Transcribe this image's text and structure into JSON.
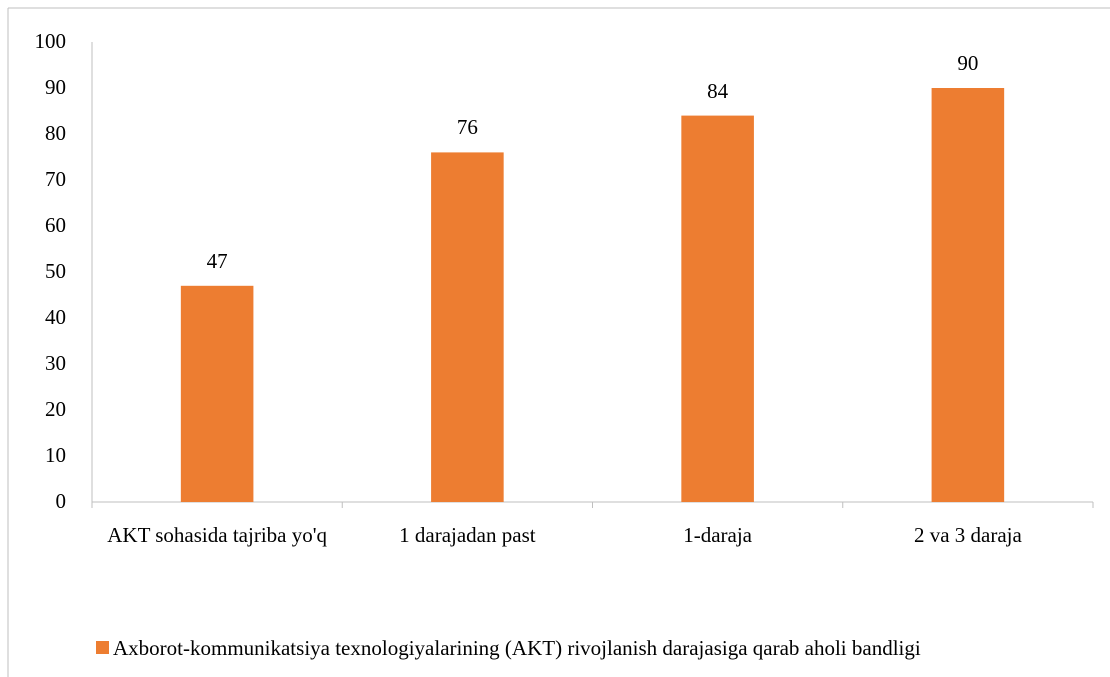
{
  "chart_data": {
    "type": "bar",
    "categories": [
      "AKT sohasida tajriba yo'q",
      "1 darajadan past",
      "1-daraja",
      "2 va 3 daraja"
    ],
    "series": [
      {
        "name": "Axborot-kommunikatsiya texnologiyalarining (AKT) rivojlanish darajasiga qarab aholi bandligi",
        "color": "#ed7d31",
        "values": [
          47,
          76,
          84,
          90
        ]
      }
    ],
    "ylim": [
      0,
      100
    ],
    "yticks": [
      0,
      10,
      20,
      30,
      40,
      50,
      60,
      70,
      80,
      90,
      100
    ],
    "grid": false,
    "legend": "bottom"
  }
}
